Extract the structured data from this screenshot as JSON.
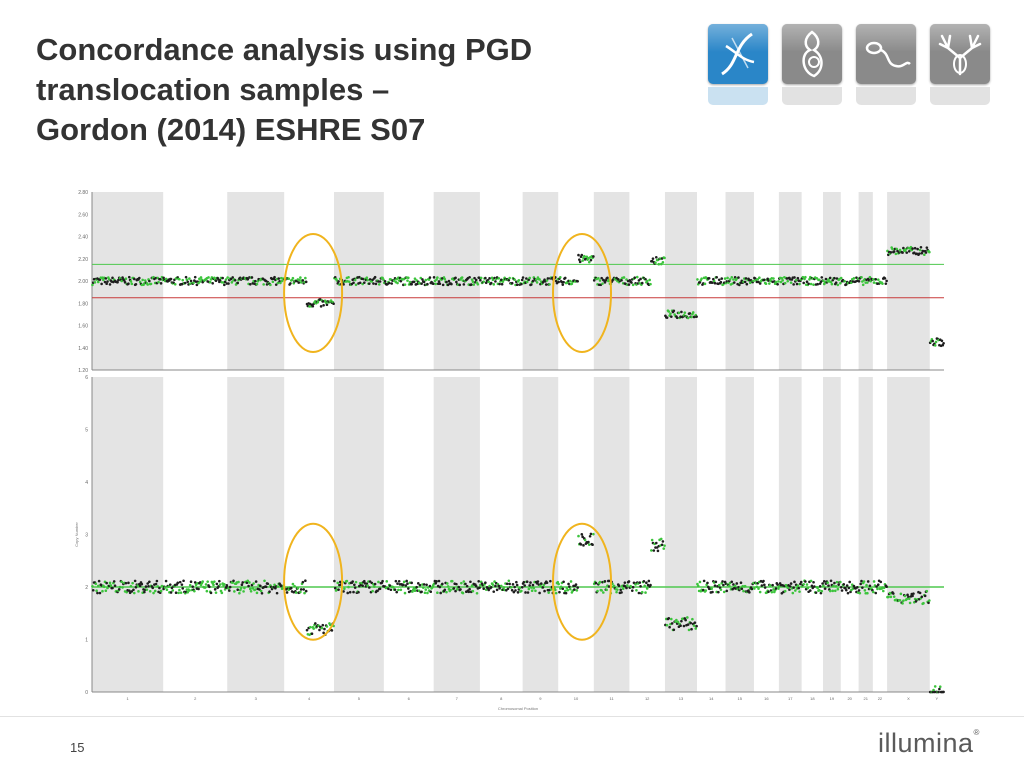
{
  "slide": {
    "title_lines": [
      "Concordance analysis using PGD",
      "translocation samples –",
      "Gordon (2014) ESHRE S07"
    ],
    "page_number": "15",
    "brand_logo": "illumina",
    "icons": [
      {
        "name": "dna-strand-icon",
        "color": "#2a86c8"
      },
      {
        "name": "embryo-icon",
        "color": "#8a8a8a"
      },
      {
        "name": "sperm-icon",
        "color": "#8a8a8a"
      },
      {
        "name": "deer-antlers-icon",
        "color": "#8a8a8a"
      }
    ]
  },
  "colors": {
    "band_gray": "#e4e4e4",
    "point_green": "#3cc43c",
    "point_black": "#1e1e1e",
    "threshold_green": "#4ec84e",
    "threshold_red": "#c83a3a",
    "highlight_orange": "#f0b41e"
  },
  "chart_data": [
    {
      "type": "scatter",
      "title": "",
      "xlabel": "",
      "ylabel": "",
      "ylim": [
        1.2,
        2.8
      ],
      "grid": false,
      "tick_labels": [
        "2.80",
        "2.60",
        "2.40",
        "2.20",
        "2.00",
        "1.80",
        "1.60",
        "1.40",
        "1.20"
      ],
      "baseline": 2.0,
      "thresholds": [
        {
          "y": 2.15,
          "color": "green"
        },
        {
          "y": 1.85,
          "color": "red"
        }
      ],
      "chromosomes": 24,
      "segments": [
        {
          "chromosome": 1,
          "value": 2.0
        },
        {
          "chromosome": 2,
          "value": 2.0
        },
        {
          "chromosome": 3,
          "value": 2.0
        },
        {
          "chromosome": 4,
          "value": 2.0,
          "partial": {
            "from": 0.45,
            "value": 1.8
          }
        },
        {
          "chromosome": 5,
          "value": 2.0
        },
        {
          "chromosome": 6,
          "value": 2.0
        },
        {
          "chromosome": 7,
          "value": 2.0
        },
        {
          "chromosome": 8,
          "value": 2.0
        },
        {
          "chromosome": 9,
          "value": 2.0
        },
        {
          "chromosome": 10,
          "value": 2.0,
          "partial": {
            "from": 0.55,
            "value": 2.2
          }
        },
        {
          "chromosome": 11,
          "value": 2.0
        },
        {
          "chromosome": 12,
          "value": 2.0,
          "partial": {
            "from": 0.6,
            "value": 2.18
          }
        },
        {
          "chromosome": 13,
          "value": 1.7
        },
        {
          "chromosome": 14,
          "value": 2.0
        },
        {
          "chromosome": 15,
          "value": 2.0
        },
        {
          "chromosome": 16,
          "value": 2.0
        },
        {
          "chromosome": 17,
          "value": 2.0
        },
        {
          "chromosome": 18,
          "value": 2.0
        },
        {
          "chromosome": 19,
          "value": 2.0
        },
        {
          "chromosome": 20,
          "value": 2.0
        },
        {
          "chromosome": 21,
          "value": 2.0
        },
        {
          "chromosome": 22,
          "value": 2.0
        },
        {
          "chromosome": 23,
          "value": 2.27
        },
        {
          "chromosome": 24,
          "value": 1.45
        }
      ],
      "highlights": [
        {
          "chromosome": 4,
          "label": "translocation region"
        },
        {
          "chromosome": 10,
          "label": "translocation region"
        }
      ]
    },
    {
      "type": "scatter",
      "title": "",
      "xlabel": "Chromosomal Position",
      "ylabel": "Copy Number",
      "ylim": [
        0,
        6
      ],
      "grid": false,
      "tick_labels": [
        "6",
        "5",
        "4",
        "3",
        "2",
        "1",
        "0"
      ],
      "baseline": 2.0,
      "chromosomes": 24,
      "x_tick_labels": [
        "1",
        "2",
        "3",
        "4",
        "5",
        "6",
        "7",
        "8",
        "9",
        "10",
        "11",
        "12",
        "13",
        "14",
        "15",
        "16",
        "17",
        "18",
        "19",
        "20",
        "21",
        "22",
        "X",
        "Y"
      ],
      "segments": [
        {
          "chromosome": 1,
          "value": 2.0
        },
        {
          "chromosome": 2,
          "value": 2.0
        },
        {
          "chromosome": 3,
          "value": 2.0
        },
        {
          "chromosome": 4,
          "value": 2.0,
          "partial": {
            "from": 0.45,
            "value": 1.2
          }
        },
        {
          "chromosome": 5,
          "value": 2.0
        },
        {
          "chromosome": 6,
          "value": 2.0
        },
        {
          "chromosome": 7,
          "value": 2.0
        },
        {
          "chromosome": 8,
          "value": 2.0
        },
        {
          "chromosome": 9,
          "value": 2.0
        },
        {
          "chromosome": 10,
          "value": 2.0,
          "partial": {
            "from": 0.55,
            "value": 2.9
          }
        },
        {
          "chromosome": 11,
          "value": 2.0
        },
        {
          "chromosome": 12,
          "value": 2.0,
          "partial": {
            "from": 0.6,
            "value": 2.8
          }
        },
        {
          "chromosome": 13,
          "value": 1.3
        },
        {
          "chromosome": 14,
          "value": 2.0
        },
        {
          "chromosome": 15,
          "value": 2.0
        },
        {
          "chromosome": 16,
          "value": 2.0
        },
        {
          "chromosome": 17,
          "value": 2.0
        },
        {
          "chromosome": 18,
          "value": 2.0
        },
        {
          "chromosome": 19,
          "value": 2.0
        },
        {
          "chromosome": 20,
          "value": 2.0
        },
        {
          "chromosome": 21,
          "value": 2.0
        },
        {
          "chromosome": 22,
          "value": 2.0
        },
        {
          "chromosome": 23,
          "value": 1.8
        },
        {
          "chromosome": 24,
          "value": 0.0
        }
      ],
      "highlights": [
        {
          "chromosome": 4,
          "label": "translocation region"
        },
        {
          "chromosome": 10,
          "label": "translocation region"
        }
      ]
    }
  ]
}
